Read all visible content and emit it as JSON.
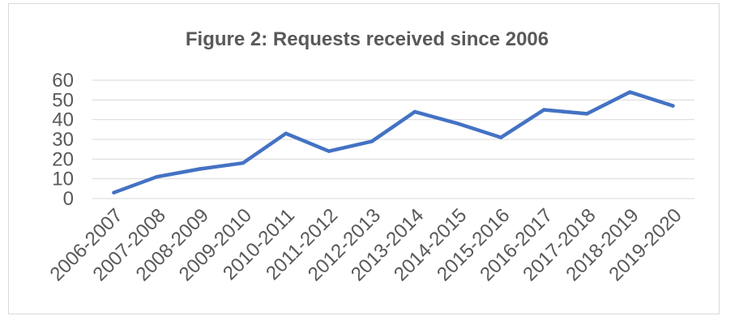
{
  "chart_data": {
    "type": "line",
    "title": "Figure 2: Requests received since 2006",
    "xlabel": "",
    "ylabel": "",
    "categories": [
      "2006-2007",
      "2007-2008",
      "2008-2009",
      "2009-2010",
      "2010-2011",
      "2011-2012",
      "2012-2013",
      "2013-2014",
      "2014-2015",
      "2015-2016",
      "2016-2017",
      "2017-2018",
      "2018-2019",
      "2019-2020"
    ],
    "series": [
      {
        "values": [
          3,
          11,
          15,
          18,
          33,
          24,
          29,
          44,
          38,
          31,
          45,
          43,
          54,
          47
        ],
        "color": "#4472c4"
      }
    ],
    "ylim": [
      0,
      60
    ],
    "yticks": [
      0,
      10,
      20,
      30,
      40,
      50,
      60
    ],
    "yticks_text": [
      "0",
      "10",
      "20",
      "30",
      "40",
      "50",
      "60"
    ],
    "grid": true,
    "legend": "none",
    "gridline_color": "#d9d9d9",
    "text_color": "#595959",
    "border_color": "#d9d9d9"
  }
}
